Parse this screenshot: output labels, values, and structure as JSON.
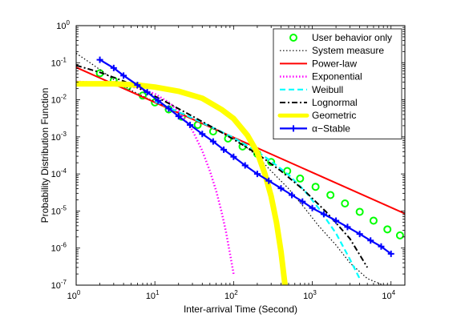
{
  "chart_data": {
    "type": "line",
    "xlabel": "Inter-arrival Time (Second)",
    "ylabel": "Probability Distribution Function",
    "xscale": "log",
    "yscale": "log",
    "xlim": [
      1,
      15000
    ],
    "ylim": [
      1e-07,
      1
    ],
    "x_ticks": [
      {
        "value": 1,
        "mantissa": "10",
        "exp": "0"
      },
      {
        "value": 10,
        "mantissa": "10",
        "exp": "1"
      },
      {
        "value": 100,
        "mantissa": "10",
        "exp": "2"
      },
      {
        "value": 1000,
        "mantissa": "10",
        "exp": "3"
      },
      {
        "value": 10000,
        "mantissa": "10",
        "exp": "4"
      }
    ],
    "y_ticks": [
      {
        "value": 1,
        "mantissa": "10",
        "exp": "0"
      },
      {
        "value": 0.1,
        "mantissa": "10",
        "exp": "-1"
      },
      {
        "value": 0.01,
        "mantissa": "10",
        "exp": "-2"
      },
      {
        "value": 0.001,
        "mantissa": "10",
        "exp": "-3"
      },
      {
        "value": 0.0001,
        "mantissa": "10",
        "exp": "-4"
      },
      {
        "value": 1e-05,
        "mantissa": "10",
        "exp": "-5"
      },
      {
        "value": 1e-06,
        "mantissa": "10",
        "exp": "-6"
      },
      {
        "value": 1e-07,
        "mantissa": "10",
        "exp": "-7"
      }
    ],
    "grid": false,
    "legend_position": "top-right",
    "series": [
      {
        "name": "User behavior only",
        "color": "#00ff00",
        "style": "circle-markers",
        "x": [
          2,
          3,
          4.5,
          7,
          10,
          15,
          22,
          35,
          55,
          85,
          130,
          200,
          300,
          480,
          700,
          1100,
          1700,
          2600,
          4000,
          6000,
          9000,
          13000
        ],
        "y": [
          0.052,
          0.033,
          0.023,
          0.013,
          0.0085,
          0.0055,
          0.0035,
          0.0021,
          0.0014,
          0.0009,
          0.00055,
          0.00035,
          0.00021,
          0.00012,
          7.5e-05,
          4.5e-05,
          2.7e-05,
          1.6e-05,
          9.5e-06,
          5.5e-06,
          3.2e-06,
          2.2e-06
        ]
      },
      {
        "name": "System measure",
        "color": "#000000",
        "style": "dotted",
        "x": [
          1,
          1.5,
          2,
          3,
          5,
          8,
          12,
          20,
          30,
          50,
          70,
          100,
          150,
          200,
          300,
          500,
          800,
          1200,
          2000,
          3000,
          5000,
          8000,
          10000
        ],
        "y": [
          0.18,
          0.1,
          0.065,
          0.035,
          0.018,
          0.011,
          0.0075,
          0.0045,
          0.003,
          0.0018,
          0.0013,
          0.0009,
          0.0005,
          0.0003,
          0.00012,
          4e-05,
          1.2e-05,
          4e-06,
          1.2e-06,
          4e-07,
          1.5e-07,
          1e-07,
          1e-07
        ]
      },
      {
        "name": "Power-law",
        "color": "#ff0000",
        "style": "solid",
        "x": [
          1,
          15000
        ],
        "y": [
          0.075,
          8.5e-06
        ]
      },
      {
        "name": "Exponential",
        "color": "#ff00ff",
        "style": "dotted",
        "x": [
          1,
          3,
          6,
          10,
          15,
          20,
          30,
          40,
          50,
          60,
          70,
          80,
          90,
          100
        ],
        "y": [
          0.031,
          0.027,
          0.021,
          0.0145,
          0.0085,
          0.005,
          0.0015,
          0.00042,
          0.00012,
          3.5e-05,
          1e-05,
          2.8e-06,
          7e-07,
          2e-07
        ]
      },
      {
        "name": "Weibull",
        "color": "#00ffff",
        "style": "dashed",
        "x": [
          10,
          30,
          60,
          100,
          200,
          300,
          500,
          800,
          1200,
          2000,
          3000,
          4000
        ],
        "y": [
          0.009,
          0.0032,
          0.0016,
          0.00095,
          0.0004,
          0.00022,
          9.5e-05,
          3.5e-05,
          1.2e-05,
          2.5e-06,
          5e-07,
          1.5e-07
        ]
      },
      {
        "name": "Lognormal",
        "color": "#000000",
        "style": "dashdot",
        "x": [
          1,
          2,
          4,
          8,
          15,
          30,
          60,
          100,
          200,
          400,
          800,
          1500,
          3000,
          5000
        ],
        "y": [
          0.085,
          0.055,
          0.032,
          0.016,
          0.008,
          0.0036,
          0.0016,
          0.00085,
          0.00035,
          0.00012,
          3.5e-05,
          9.5e-06,
          1.8e-06,
          3e-07
        ]
      },
      {
        "name": "Geometric",
        "color": "#ffff00",
        "style": "thick",
        "x": [
          1,
          3,
          6,
          10,
          20,
          40,
          70,
          100,
          150,
          200,
          250,
          300,
          350,
          400,
          450
        ],
        "y": [
          0.027,
          0.027,
          0.025,
          0.022,
          0.017,
          0.011,
          0.0055,
          0.0031,
          0.0011,
          0.00038,
          0.0001,
          2.5e-05,
          5e-06,
          8e-07,
          1e-07
        ]
      },
      {
        "name": "α−Stable",
        "color": "#0000ff",
        "style": "plus-markers",
        "x": [
          2,
          3,
          4,
          6,
          8,
          11,
          15,
          20,
          28,
          40,
          55,
          75,
          100,
          140,
          200,
          280,
          400,
          550,
          750,
          1000,
          1400,
          2000,
          2800,
          4000,
          5500,
          7500,
          10000
        ],
        "y": [
          0.12,
          0.072,
          0.045,
          0.025,
          0.016,
          0.0095,
          0.0058,
          0.0036,
          0.0021,
          0.0012,
          0.00075,
          0.00045,
          0.00029,
          0.00017,
          0.0001,
          6.5e-05,
          4.1e-05,
          2.7e-05,
          1.8e-05,
          1.2e-05,
          8.2e-06,
          5.5e-06,
          3.7e-06,
          2.4e-06,
          1.6e-06,
          1.1e-06,
          7e-07
        ]
      }
    ]
  }
}
